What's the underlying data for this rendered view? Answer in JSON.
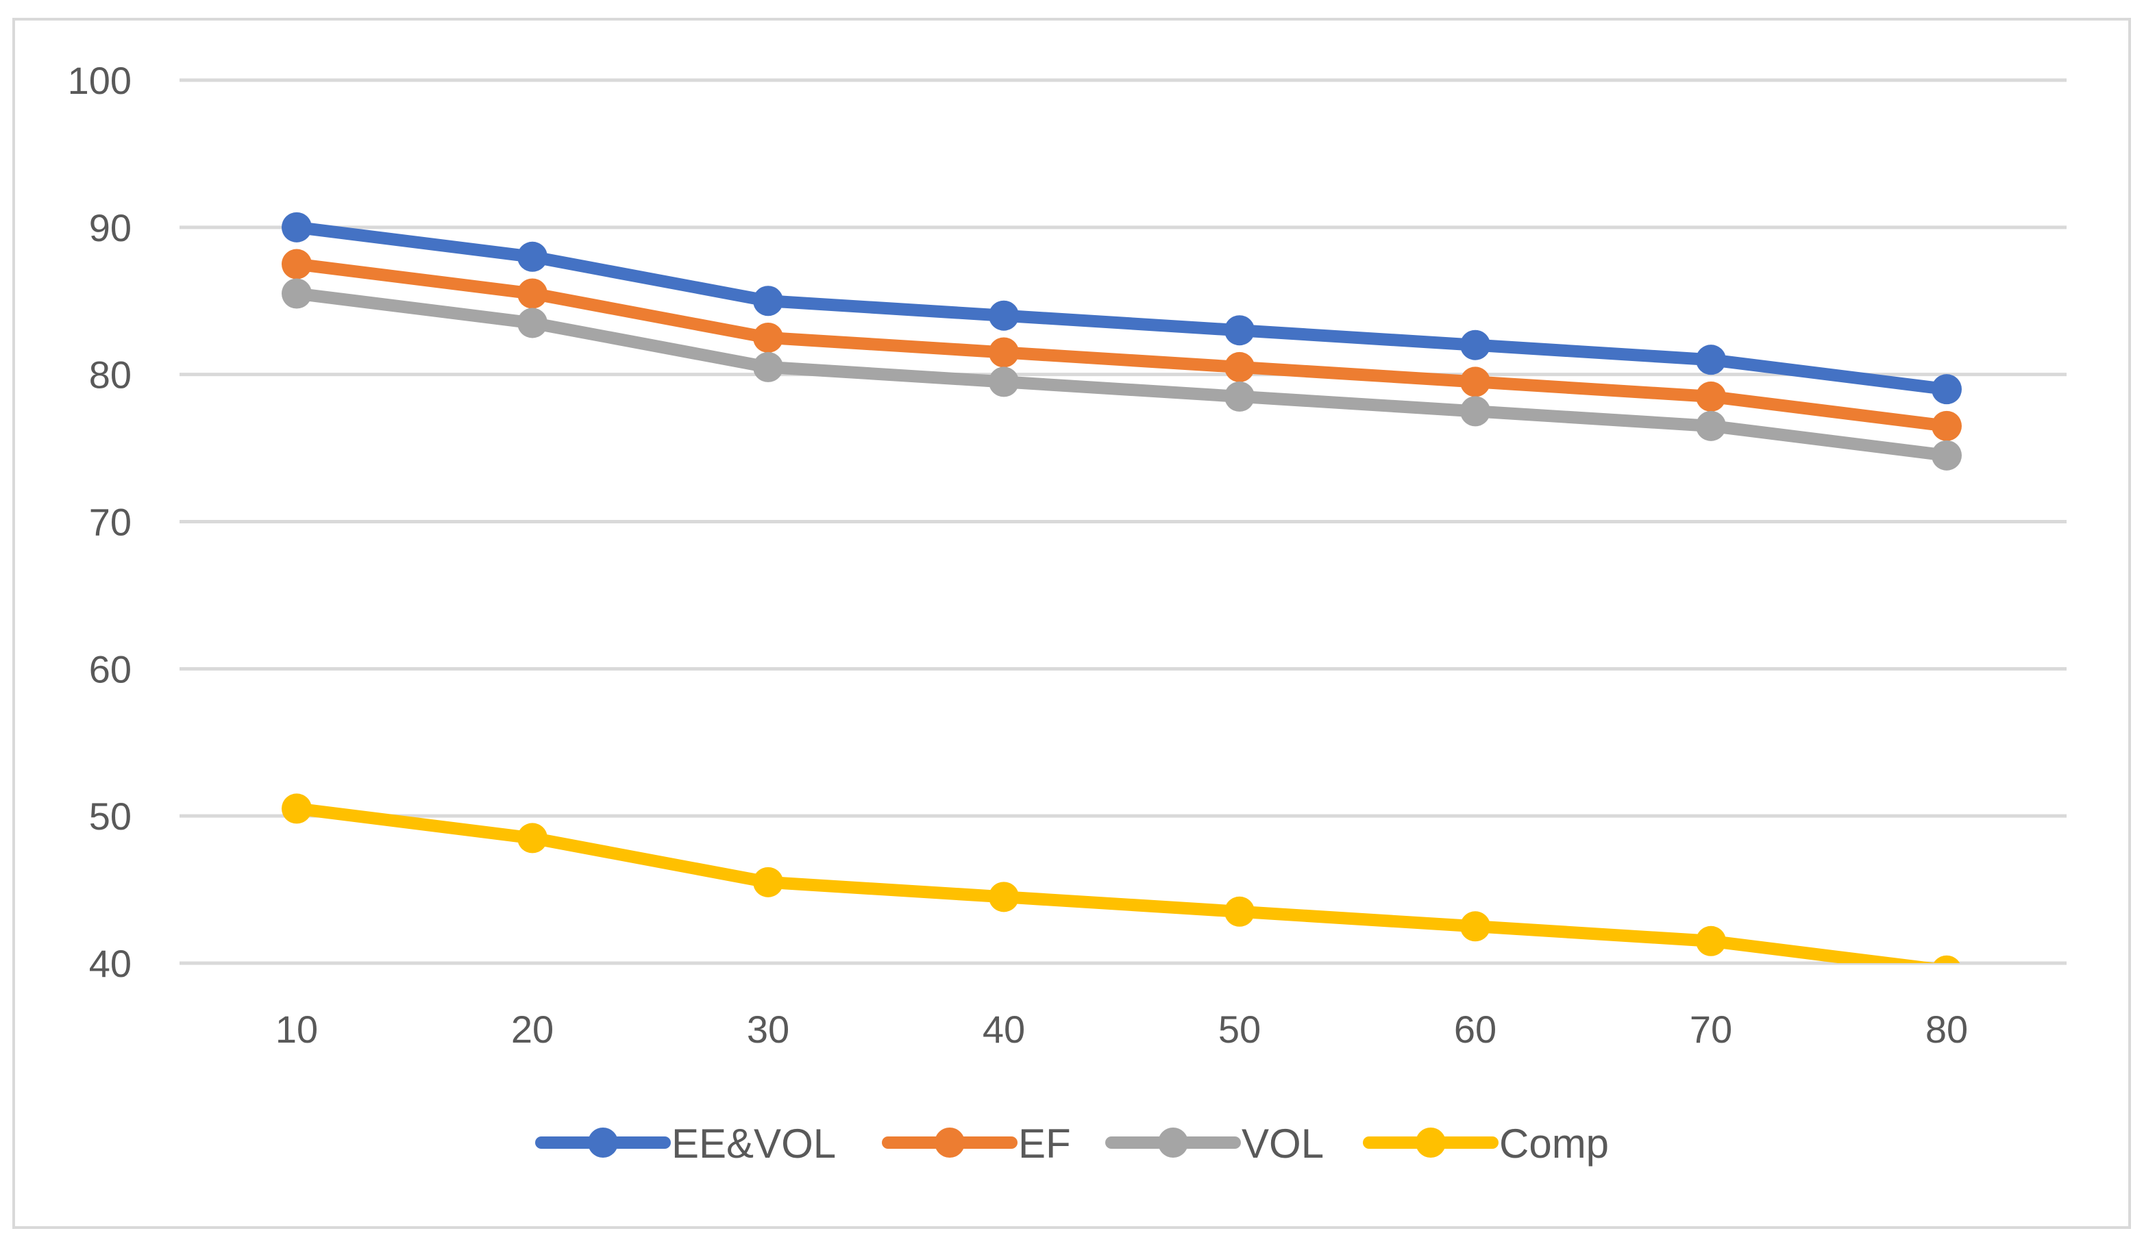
{
  "chart_data": {
    "type": "line",
    "title": "",
    "xlabel": "",
    "ylabel": "",
    "x": [
      10,
      20,
      30,
      40,
      50,
      60,
      70,
      80
    ],
    "categories": [
      "10",
      "20",
      "30",
      "40",
      "50",
      "60",
      "70",
      "80"
    ],
    "ylim": [
      40,
      100
    ],
    "yticks": [
      40,
      50,
      60,
      70,
      80,
      90,
      100
    ],
    "ytick_labels": [
      "40",
      "50",
      "60",
      "70",
      "80",
      "90",
      "100"
    ],
    "grid": true,
    "legend_position": "bottom",
    "series": [
      {
        "name": "EE&VOL",
        "color": "#4472c4",
        "values": [
          90,
          88,
          85,
          84,
          83,
          82,
          81,
          79
        ]
      },
      {
        "name": "EF",
        "color": "#ed7d31",
        "values": [
          87.5,
          85.5,
          82.5,
          81.5,
          80.5,
          79.5,
          78.5,
          76.5
        ]
      },
      {
        "name": "VOL",
        "color": "#a5a5a5",
        "values": [
          85.5,
          83.5,
          80.5,
          79.5,
          78.5,
          77.5,
          76.5,
          74.5
        ]
      },
      {
        "name": "Comp",
        "color": "#ffc000",
        "values": [
          50.5,
          48.5,
          45.5,
          44.5,
          43.5,
          42.5,
          41.5,
          39.5
        ]
      }
    ]
  }
}
